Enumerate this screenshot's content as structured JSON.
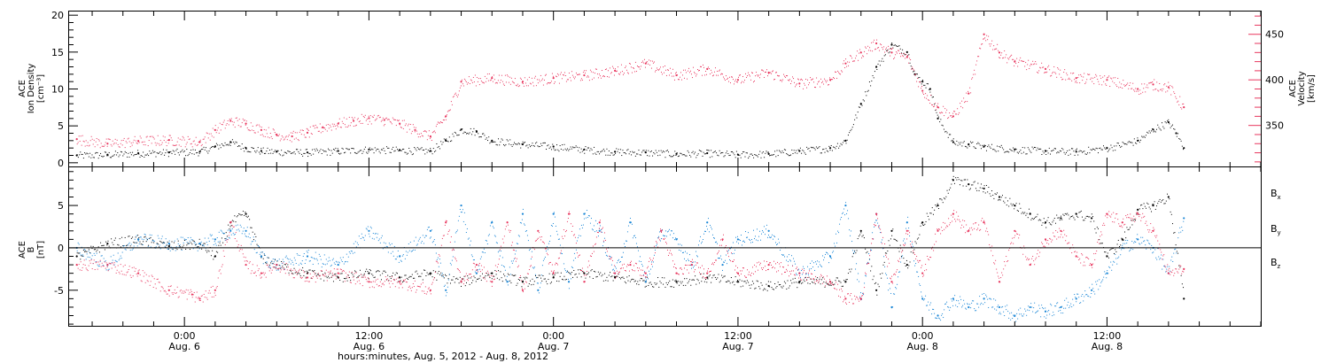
{
  "figure": {
    "xlabel": "hours:minutes, Aug. 5, 2012 - Aug. 8, 2012",
    "time_ticks": [
      {
        "hours": 0,
        "time": "0:00",
        "date": "Aug. 6"
      },
      {
        "hours": 12,
        "time": "12:00",
        "date": "Aug. 6"
      },
      {
        "hours": 24,
        "time": "0:00",
        "date": "Aug. 7"
      },
      {
        "hours": 36,
        "time": "12:00",
        "date": "Aug. 7"
      },
      {
        "hours": 48,
        "time": "0:00",
        "date": "Aug. 8"
      },
      {
        "hours": 60,
        "time": "12:00",
        "date": "Aug. 8"
      }
    ],
    "colors": {
      "black": "#000000",
      "red": "#e8365e",
      "blue": "#1a86d6"
    }
  },
  "chart_data": [
    {
      "type": "scatter",
      "panel": "top",
      "xlim": [
        -7.5,
        70
      ],
      "left_axis": {
        "label_lines": [
          "ACE",
          "Ion Density",
          "[cm⁻³]"
        ],
        "ylim": [
          -0.5,
          20.5
        ],
        "ticks": [
          0,
          5,
          10,
          15,
          20
        ],
        "color": "#000000"
      },
      "right_axis": {
        "label_lines": [
          "ACE",
          "Velocity",
          "[km/s]"
        ],
        "ylim": [
          305,
          475
        ],
        "ticks": [
          350,
          400,
          450
        ],
        "color": "#e8365e"
      },
      "series": [
        {
          "axis": "left",
          "color": "#000000",
          "x": [
            -7,
            -5,
            -3,
            -1,
            1,
            2,
            3,
            4,
            5,
            6,
            8,
            10,
            12,
            14,
            16,
            17,
            18,
            19,
            20,
            22,
            24,
            26,
            28,
            30,
            32,
            34,
            36,
            38,
            40,
            42,
            43,
            44,
            45,
            46,
            47,
            47.5,
            48,
            48.5,
            49,
            50,
            51,
            52,
            54,
            56,
            58,
            60,
            62,
            63,
            64,
            64.5,
            65
          ],
          "y": [
            1,
            1.1,
            1.3,
            1.4,
            1.5,
            2.2,
            2.8,
            2,
            1.6,
            1.5,
            1.4,
            1.6,
            1.8,
            1.7,
            1.6,
            3,
            4.5,
            4.2,
            3,
            2.5,
            2.2,
            1.8,
            1.5,
            1.4,
            1.2,
            1.3,
            1.1,
            1.2,
            1.6,
            2,
            3,
            8,
            13,
            16,
            15,
            12,
            11,
            10,
            6,
            2.8,
            2.5,
            2.2,
            1.8,
            1.6,
            1.5,
            2,
            3,
            4.5,
            5.5,
            4,
            2
          ]
        },
        {
          "axis": "right",
          "color": "#e8365e",
          "x": [
            -7,
            -5,
            -3,
            -1,
            1,
            2,
            3,
            4,
            5,
            6,
            7,
            8,
            9,
            10,
            11,
            12,
            13,
            14,
            15,
            16,
            17,
            18,
            20,
            22,
            24,
            26,
            28,
            30,
            32,
            34,
            36,
            38,
            40,
            42,
            43,
            44,
            45,
            46,
            47,
            48,
            49,
            50,
            51,
            52,
            53,
            54,
            56,
            58,
            60,
            62,
            63,
            64,
            65
          ],
          "y": [
            335,
            330,
            333,
            334,
            332,
            345,
            355,
            352,
            345,
            340,
            338,
            342,
            348,
            352,
            355,
            358,
            356,
            352,
            345,
            338,
            360,
            398,
            402,
            398,
            402,
            405,
            410,
            418,
            405,
            412,
            400,
            408,
            396,
            400,
            418,
            430,
            440,
            430,
            425,
            388,
            370,
            360,
            385,
            450,
            430,
            420,
            412,
            402,
            400,
            390,
            395,
            392,
            370
          ]
        }
      ]
    },
    {
      "type": "scatter",
      "panel": "bottom",
      "xlim": [
        -7.5,
        70
      ],
      "left_axis": {
        "label_lines": [
          "ACE",
          "B",
          "[nT]"
        ],
        "ylim": [
          -9.2,
          9.5
        ],
        "ticks": [
          -5,
          0,
          5
        ],
        "color": "#000000"
      },
      "legend_position": "right",
      "series": [
        {
          "name": "Bx",
          "color": "#000000",
          "x": [
            -7,
            -5,
            -3,
            -1,
            1,
            2,
            3,
            4,
            5,
            6,
            8,
            10,
            12,
            14,
            16,
            18,
            20,
            22,
            24,
            26,
            28,
            30,
            32,
            34,
            36,
            38,
            40,
            42,
            43,
            44,
            45,
            46,
            47,
            48,
            49,
            50,
            51,
            52,
            53,
            54,
            55,
            56,
            57,
            58,
            59,
            60,
            61,
            62,
            63,
            64,
            65
          ],
          "y": [
            -1,
            0.5,
            1,
            0.2,
            0.5,
            -1,
            3,
            4,
            -1,
            -2,
            -3,
            -3.5,
            -3,
            -3.5,
            -3,
            -4,
            -3,
            -4,
            -3.5,
            -3,
            -3.5,
            -4,
            -4,
            -3.5,
            -4,
            -4.5,
            -4,
            -4,
            -4,
            2,
            -5,
            2,
            -2,
            3,
            5,
            8,
            7.5,
            7,
            6,
            5,
            4,
            3,
            3.5,
            4,
            3.5,
            -1,
            1,
            4.5,
            5,
            6,
            -6
          ]
        },
        {
          "name": "By",
          "color": "#1a86d6",
          "x": [
            -7,
            -5,
            -3,
            -1,
            1,
            2,
            3,
            4,
            5,
            6,
            8,
            10,
            12,
            14,
            16,
            17,
            18,
            19,
            20,
            21,
            22,
            23,
            24,
            25,
            26,
            27,
            28,
            29,
            30,
            31,
            32,
            33,
            34,
            35,
            36,
            38,
            40,
            42,
            43,
            44,
            45,
            46,
            47,
            48,
            49,
            50,
            51,
            52,
            53,
            54,
            55,
            56,
            57,
            58,
            59,
            60,
            61,
            62,
            63,
            64,
            65
          ],
          "y": [
            0,
            -2,
            1,
            0.5,
            0.5,
            1,
            2,
            2,
            -1,
            -2,
            -1,
            -2,
            2,
            -1,
            2,
            -5,
            5,
            -3,
            3,
            -4,
            4,
            -5,
            4,
            -4,
            4,
            2,
            -3,
            3,
            -4,
            2,
            1,
            -2,
            3,
            -2,
            1,
            2,
            -3,
            -1,
            5,
            -6,
            4,
            -7,
            3,
            -6,
            -8,
            -6,
            -7,
            -6,
            -7,
            -8,
            -7,
            -7.5,
            -7,
            -6,
            -5,
            -3,
            0,
            1,
            0,
            -3,
            3.5
          ]
        },
        {
          "name": "Bz",
          "color": "#e8365e",
          "x": [
            -7,
            -5,
            -3,
            -1,
            0.5,
            1,
            2,
            3,
            4,
            5,
            6,
            8,
            10,
            12,
            14,
            16,
            17,
            18,
            19,
            20,
            21,
            22,
            23,
            24,
            25,
            26,
            27,
            28,
            29,
            30,
            31,
            32,
            33,
            34,
            35,
            36,
            38,
            40,
            42,
            43,
            44,
            45,
            46,
            47,
            48,
            49,
            50,
            51,
            52,
            53,
            54,
            55,
            56,
            57,
            58,
            59,
            60,
            61,
            62,
            63,
            64,
            65
          ],
          "y": [
            -2,
            -2,
            -3,
            -5,
            -5.5,
            -6,
            -5,
            3,
            -2,
            -3,
            -2,
            -3.5,
            -3,
            -4,
            -4,
            -5,
            3,
            -4,
            -2,
            -4,
            3,
            -5,
            2,
            -3,
            4,
            -4,
            3,
            -3,
            -2,
            -3,
            2,
            -3,
            -2,
            -3,
            1,
            -3,
            -2,
            -3,
            -4,
            -6,
            -6,
            4,
            -4,
            2,
            -3,
            2,
            4,
            2,
            3,
            -4,
            2,
            -2,
            1,
            2,
            -1,
            -2,
            4,
            3,
            4,
            2,
            -3,
            -2.5
          ]
        }
      ]
    }
  ]
}
